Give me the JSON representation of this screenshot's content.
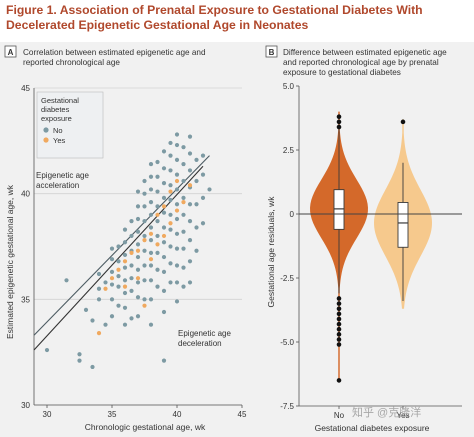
{
  "figure": {
    "title": "Figure 1. Association of Prenatal Exposure to Gestational Diabetes With Decelerated Epigenetic Gestational Age in Neonates"
  },
  "panel_a": {
    "letter": "A",
    "title_lines": [
      "Correlation between estimated epigenetic age and",
      "reported chronological age"
    ],
    "annotation_accel": [
      "Epigenetic age",
      "acceleration"
    ],
    "annotation_decel": [
      "Epigenetic age",
      "deceleration"
    ]
  },
  "panel_b": {
    "letter": "B",
    "title_lines": [
      "Difference between estimated epigenetic age",
      "and reported chronological age by prenatal",
      "exposure to gestational diabetes"
    ]
  },
  "watermark": "知乎 @克隆洋",
  "colors": {
    "no": "#7d9aa3",
    "yes": "#f0a95f",
    "no_violin": "#d4692a",
    "yes_violin": "#f6c98d",
    "title": "#b0482c"
  },
  "chart_data": [
    {
      "type": "scatter",
      "title": "Correlation between estimated epigenetic age and reported chronological age",
      "xlabel": "Chronologic gestational age, wk",
      "ylabel": "Estimated epigenetic gestational age, wk",
      "xlim": [
        29,
        45
      ],
      "ylim": [
        30,
        45
      ],
      "xticks": [
        30,
        35,
        40,
        45
      ],
      "yticks": [
        30,
        35,
        40,
        45
      ],
      "grid": "horizontal",
      "legend": {
        "title_lines": [
          "Gestational",
          "diabetes",
          "exposure"
        ],
        "entries": [
          "No",
          "Yes"
        ],
        "placement": "top-left"
      },
      "series": [
        {
          "name": "No",
          "color": "#7d9aa3",
          "points": [
            [
              30,
              32.6
            ],
            [
              31.5,
              35.9
            ],
            [
              32.5,
              32.1
            ],
            [
              32.5,
              32.4
            ],
            [
              33,
              34.5
            ],
            [
              33.5,
              31.8
            ],
            [
              33.5,
              34.0
            ],
            [
              34,
              35.0
            ],
            [
              34,
              35.5
            ],
            [
              34,
              36.2
            ],
            [
              34.5,
              33.8
            ],
            [
              34.5,
              35.8
            ],
            [
              35,
              34.2
            ],
            [
              35,
              35.0
            ],
            [
              35,
              35.7
            ],
            [
              35,
              36.3
            ],
            [
              35,
              36.9
            ],
            [
              35,
              37.4
            ],
            [
              35.5,
              34.7
            ],
            [
              35.5,
              35.6
            ],
            [
              35.5,
              36.1
            ],
            [
              35.5,
              36.8
            ],
            [
              35.5,
              37.5
            ],
            [
              36,
              33.8
            ],
            [
              36,
              34.6
            ],
            [
              36,
              35.3
            ],
            [
              36,
              35.9
            ],
            [
              36,
              36.5
            ],
            [
              36,
              37.1
            ],
            [
              36,
              37.7
            ],
            [
              36,
              38.3
            ],
            [
              36.5,
              34.1
            ],
            [
              36.5,
              35.4
            ],
            [
              36.5,
              36.0
            ],
            [
              36.5,
              36.6
            ],
            [
              36.5,
              37.3
            ],
            [
              36.5,
              38.0
            ],
            [
              36.5,
              38.7
            ],
            [
              37,
              34.2
            ],
            [
              37,
              35.1
            ],
            [
              37,
              35.8
            ],
            [
              37,
              36.4
            ],
            [
              37,
              37.0
            ],
            [
              37,
              37.6
            ],
            [
              37,
              38.2
            ],
            [
              37,
              38.8
            ],
            [
              37,
              39.4
            ],
            [
              37,
              40.1
            ],
            [
              37.5,
              35.0
            ],
            [
              37.5,
              35.9
            ],
            [
              37.5,
              36.6
            ],
            [
              37.5,
              37.3
            ],
            [
              37.5,
              38.0
            ],
            [
              37.5,
              38.7
            ],
            [
              37.5,
              39.4
            ],
            [
              37.5,
              40.0
            ],
            [
              37.5,
              40.6
            ],
            [
              38,
              33.8
            ],
            [
              38,
              35.0
            ],
            [
              38,
              35.9
            ],
            [
              38,
              36.6
            ],
            [
              38,
              37.2
            ],
            [
              38,
              37.8
            ],
            [
              38,
              38.4
            ],
            [
              38,
              39.0
            ],
            [
              38,
              39.6
            ],
            [
              38,
              40.2
            ],
            [
              38,
              40.8
            ],
            [
              38,
              41.4
            ],
            [
              38.5,
              35.6
            ],
            [
              38.5,
              36.4
            ],
            [
              38.5,
              37.2
            ],
            [
              38.5,
              38.0
            ],
            [
              38.5,
              38.7
            ],
            [
              38.5,
              39.4
            ],
            [
              38.5,
              40.1
            ],
            [
              38.5,
              40.8
            ],
            [
              38.5,
              41.5
            ],
            [
              39,
              32.1
            ],
            [
              39,
              34.4
            ],
            [
              39,
              35.4
            ],
            [
              39,
              36.3
            ],
            [
              39,
              37.0
            ],
            [
              39,
              37.7
            ],
            [
              39,
              38.4
            ],
            [
              39,
              39.1
            ],
            [
              39,
              39.8
            ],
            [
              39,
              40.5
            ],
            [
              39,
              41.2
            ],
            [
              39,
              42.0
            ],
            [
              39.5,
              35.8
            ],
            [
              39.5,
              36.7
            ],
            [
              39.5,
              37.5
            ],
            [
              39.5,
              38.3
            ],
            [
              39.5,
              39.0
            ],
            [
              39.5,
              39.7
            ],
            [
              39.5,
              40.4
            ],
            [
              39.5,
              41.1
            ],
            [
              39.5,
              41.8
            ],
            [
              39.5,
              42.4
            ],
            [
              40,
              34.9
            ],
            [
              40,
              35.8
            ],
            [
              40,
              36.6
            ],
            [
              40,
              37.4
            ],
            [
              40,
              38.1
            ],
            [
              40,
              38.8
            ],
            [
              40,
              39.5
            ],
            [
              40,
              40.2
            ],
            [
              40,
              40.9
            ],
            [
              40,
              41.6
            ],
            [
              40,
              42.3
            ],
            [
              40,
              42.8
            ],
            [
              40.5,
              35.6
            ],
            [
              40.5,
              36.5
            ],
            [
              40.5,
              37.4
            ],
            [
              40.5,
              38.2
            ],
            [
              40.5,
              39.0
            ],
            [
              40.5,
              39.8
            ],
            [
              40.5,
              40.6
            ],
            [
              40.5,
              41.4
            ],
            [
              40.5,
              42.2
            ],
            [
              41,
              35.8
            ],
            [
              41,
              36.8
            ],
            [
              41,
              37.8
            ],
            [
              41,
              38.7
            ],
            [
              41,
              39.5
            ],
            [
              41,
              40.3
            ],
            [
              41,
              41.1
            ],
            [
              41,
              41.9
            ],
            [
              41,
              42.7
            ],
            [
              41.5,
              37.3
            ],
            [
              41.5,
              38.4
            ],
            [
              41.5,
              39.5
            ],
            [
              41.5,
              40.6
            ],
            [
              41.5,
              41.6
            ],
            [
              42,
              38.6
            ],
            [
              42,
              39.8
            ],
            [
              42,
              40.9
            ],
            [
              42,
              41.8
            ],
            [
              42.5,
              40.2
            ]
          ]
        },
        {
          "name": "Yes",
          "color": "#f0a95f",
          "points": [
            [
              34,
              33.4
            ],
            [
              34.5,
              35.5
            ],
            [
              35,
              36.0
            ],
            [
              35.5,
              36.4
            ],
            [
              36,
              35.6
            ],
            [
              36,
              36.8
            ],
            [
              36.5,
              37.2
            ],
            [
              37,
              36.0
            ],
            [
              37,
              37.3
            ],
            [
              37.5,
              37.8
            ],
            [
              37.5,
              34.7
            ],
            [
              38,
              36.9
            ],
            [
              38,
              38.1
            ],
            [
              38.5,
              37.6
            ],
            [
              38.5,
              39.0
            ],
            [
              39,
              38.0
            ],
            [
              39,
              39.4
            ],
            [
              39.5,
              38.6
            ],
            [
              39.5,
              40.1
            ],
            [
              40,
              39.2
            ],
            [
              40,
              40.6
            ],
            [
              40.5,
              39.6
            ],
            [
              41,
              40.4
            ]
          ]
        }
      ],
      "regression_lines": [
        {
          "name": "No",
          "x": [
            29,
            42.5
          ],
          "y": [
            33.3,
            41.8
          ]
        },
        {
          "name": "Yes",
          "x": [
            29,
            42
          ],
          "y": [
            32.6,
            41.3
          ]
        }
      ]
    },
    {
      "type": "violin",
      "title": "Difference between estimated epigenetic age and reported chronological age by prenatal exposure to gestational diabetes",
      "xlabel": "Gestational diabetes exposure",
      "ylabel": "Gestational age residuals, wk",
      "categories": [
        "No",
        "Yes"
      ],
      "ylim": [
        -7.5,
        5.0
      ],
      "yticks": [
        -7.5,
        -5.0,
        -2.5,
        0,
        2.5,
        5.0
      ],
      "reference_line": 0,
      "groups": [
        {
          "name": "No",
          "median": 0.2,
          "q1": -0.6,
          "q3": 0.95,
          "whisker_low": -3.1,
          "whisker_high": 3.5,
          "range": [
            -6.5,
            4.0
          ],
          "outliers": [
            3.4,
            3.6,
            3.8,
            -3.3,
            -3.5,
            -3.7,
            -3.9,
            -4.1,
            -4.3,
            -4.5,
            -4.7,
            -4.9,
            -5.1,
            -6.5
          ]
        },
        {
          "name": "Yes",
          "median": -0.35,
          "q1": -1.3,
          "q3": 0.45,
          "whisker_low": -3.4,
          "whisker_high": 2.0,
          "range": [
            -3.7,
            3.7
          ],
          "outliers": [
            3.6
          ]
        }
      ]
    }
  ]
}
